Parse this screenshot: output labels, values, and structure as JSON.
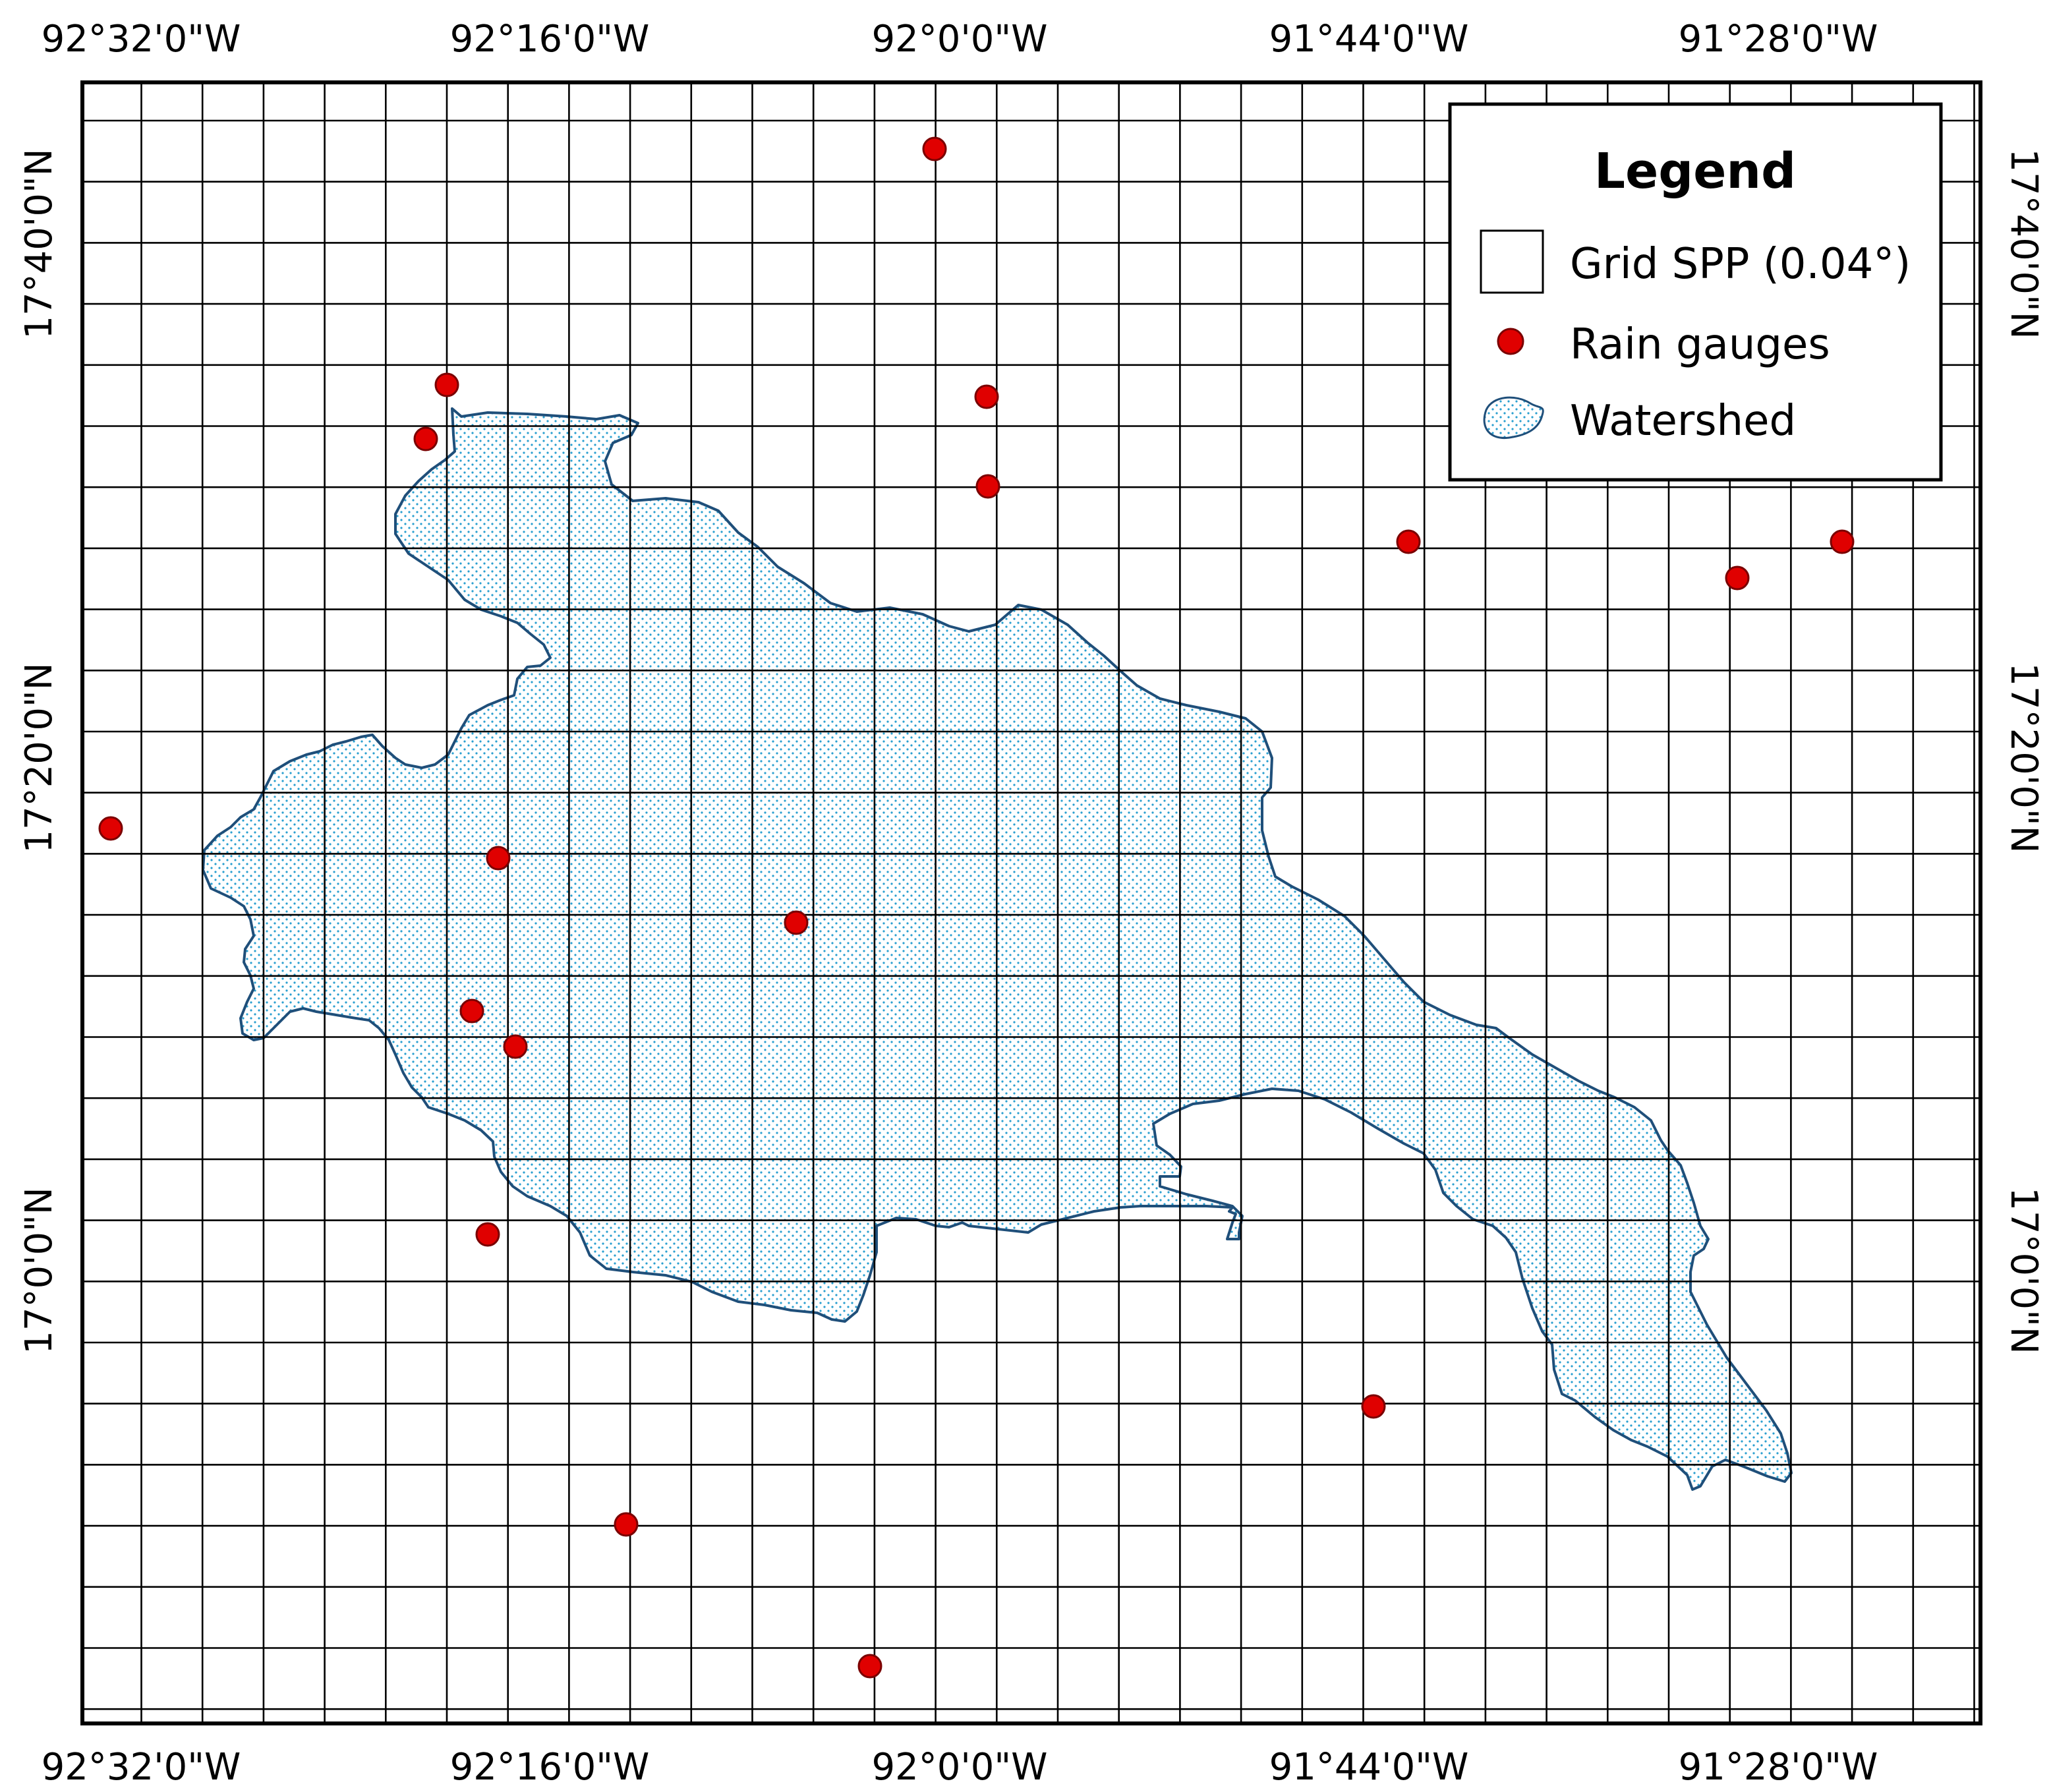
{
  "map": {
    "top_axis_labels": [
      "92°32'0\"W",
      "92°16'0\"W",
      "92°0'0\"W",
      "91°44'0\"W",
      "91°28'0\"W"
    ],
    "bottom_axis_labels": [
      "92°32'0\"W",
      "92°16'0\"W",
      "92°0'0\"W",
      "91°44'0\"W",
      "91°28'0\"W"
    ],
    "left_axis_labels": [
      "17°40'0\"N",
      "17°20'0\"N",
      "17°0'0\"N"
    ],
    "right_axis_labels": [
      "17°40'0\"N",
      "17°20'0\"N",
      "17°0'0\"N"
    ],
    "grid_spacing_deg": 0.04,
    "colors": {
      "grid_line": "#000000",
      "gauge_fill": "#e00000",
      "gauge_stroke": "#7a0000",
      "watershed_outline": "#1f4f7a",
      "watershed_dots": "#2a9fd0"
    }
  },
  "legend": {
    "title": "Legend",
    "items": [
      {
        "label": "Grid SPP (0.04°)",
        "symbol": "grid-square-icon"
      },
      {
        "label": "Rain gauges",
        "symbol": "red-dot-icon"
      },
      {
        "label": "Watershed",
        "symbol": "watershed-patch-icon"
      }
    ]
  }
}
